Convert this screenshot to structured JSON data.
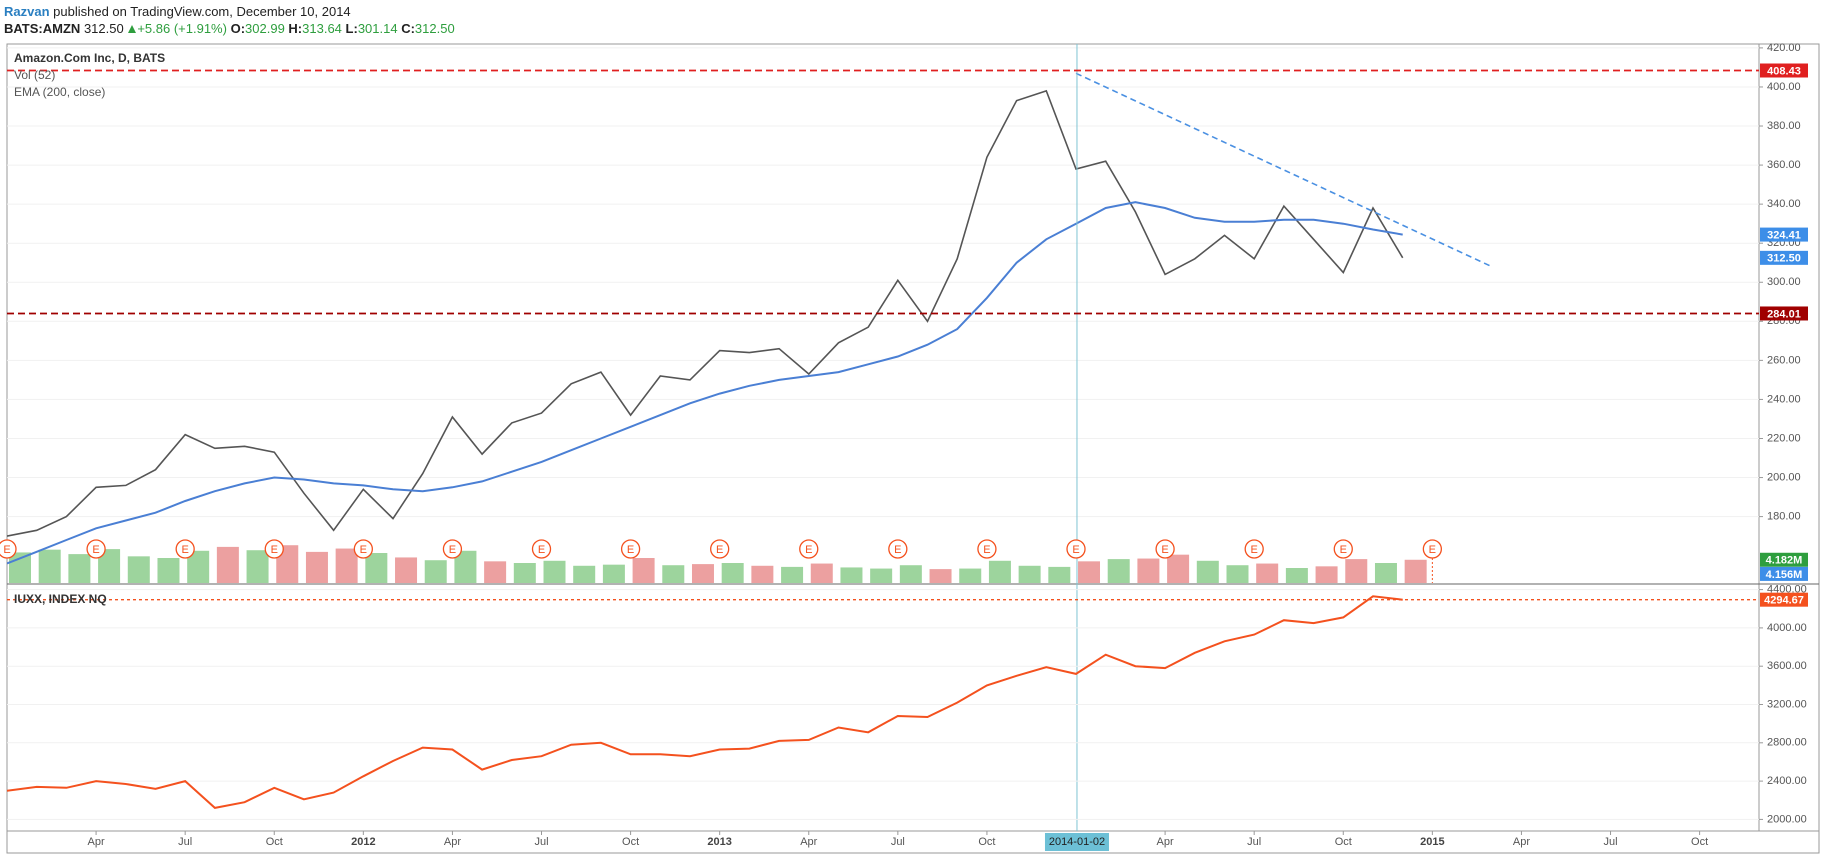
{
  "header": {
    "author": "Razvan",
    "published": "published on TradingView.com, December 10, 2014",
    "symbol": "BATS:AMZN",
    "last": "312.50",
    "change": "+5.86 (+1.91%)",
    "open_label": "O:",
    "open": "302.99",
    "high_label": "H:",
    "high": "313.64",
    "low_label": "L:",
    "low": "301.14",
    "close_label": "C:",
    "close": "312.50"
  },
  "chart_data": [
    {
      "type": "line",
      "x": [
        "2011-01",
        "2011-02",
        "2011-03",
        "2011-04",
        "2011-05",
        "2011-06",
        "2011-07",
        "2011-08",
        "2011-09",
        "2011-10",
        "2011-11",
        "2011-12",
        "2012-01",
        "2012-02",
        "2012-03",
        "2012-04",
        "2012-05",
        "2012-06",
        "2012-07",
        "2012-08",
        "2012-09",
        "2012-10",
        "2012-11",
        "2012-12",
        "2013-01",
        "2013-02",
        "2013-03",
        "2013-04",
        "2013-05",
        "2013-06",
        "2013-07",
        "2013-08",
        "2013-09",
        "2013-10",
        "2013-11",
        "2013-12",
        "2014-01",
        "2014-02",
        "2014-03",
        "2014-04",
        "2014-05",
        "2014-06",
        "2014-07",
        "2014-08",
        "2014-09",
        "2014-10",
        "2014-11",
        "2014-12"
      ],
      "series": [
        {
          "name": "Amazon.Com Inc, D, BATS",
          "color": "#555555",
          "values": [
            170,
            173,
            180,
            195,
            196,
            204,
            222,
            215,
            216,
            213,
            192,
            173,
            194,
            179,
            202,
            231,
            212,
            228,
            233,
            248,
            254,
            232,
            252,
            250,
            265,
            264,
            266,
            253,
            269,
            277,
            301,
            280,
            312,
            364,
            393,
            398,
            358,
            362,
            336,
            304,
            312,
            324,
            312,
            339,
            322,
            305,
            338,
            312.5
          ]
        },
        {
          "name": "EMA (200, close)",
          "color": "#4a7fd4",
          "values": [
            156,
            162,
            168,
            174,
            178,
            182,
            188,
            193,
            197,
            200,
            199,
            197,
            196,
            194,
            193,
            195,
            198,
            203,
            208,
            214,
            220,
            226,
            232,
            238,
            243,
            247,
            250,
            252,
            254,
            258,
            262,
            268,
            276,
            292,
            310,
            322,
            330,
            338,
            341,
            338,
            333,
            331,
            331,
            332,
            332,
            330,
            327,
            324.41
          ]
        }
      ],
      "volume": {
        "name": "Vol (52)",
        "values": [
          5500000,
          6000000,
          5200000,
          6100000,
          4800000,
          4500000,
          5800000,
          6500000,
          5900000,
          6800000,
          5600000,
          6200000,
          5400000,
          4600000,
          4100000,
          5800000,
          3900000,
          3600000,
          4000000,
          3100000,
          3300000,
          4500000,
          3200000,
          3400000,
          3600000,
          3100000,
          2900000,
          3500000,
          2800000,
          2600000,
          3200000,
          2500000,
          2600000,
          4000000,
          3100000,
          2900000,
          3900000,
          4300000,
          4400000,
          5100000,
          4000000,
          3200000,
          3500000,
          2700000,
          3000000,
          4300000,
          3600000,
          4182000
        ],
        "up_color": "#5cb85c",
        "down_color": "#e06060",
        "ylim": [
          0,
          18000000
        ],
        "last_labels": [
          {
            "value": 4182000,
            "label": "4.182M",
            "color": "#2e9e3e"
          },
          {
            "value": 4156000,
            "label": "4.156M",
            "color": "#3d8ee8"
          }
        ]
      },
      "xlim": [
        "2011-01",
        "2015-12"
      ],
      "ylim": [
        146,
        422
      ],
      "yticks": [
        {
          "value": 180,
          "label": "180.00"
        },
        {
          "value": 200,
          "label": "200.00"
        },
        {
          "value": 220,
          "label": "220.00"
        },
        {
          "value": 240,
          "label": "240.00"
        },
        {
          "value": 260,
          "label": "260.00"
        },
        {
          "value": 280,
          "label": "280.00"
        },
        {
          "value": 300,
          "label": "300.00"
        },
        {
          "value": 320,
          "label": "320.00"
        },
        {
          "value": 340,
          "label": "340.00"
        },
        {
          "value": 360,
          "label": "360.00"
        },
        {
          "value": 380,
          "label": "380.00"
        },
        {
          "value": 400,
          "label": "400.00"
        },
        {
          "value": 420,
          "label": "420.00"
        }
      ],
      "price_labels": [
        {
          "value": 408.43,
          "label": "408.43",
          "color": "#e02020",
          "line": true
        },
        {
          "value": 284.01,
          "label": "284.01",
          "color": "#a00000",
          "line": true
        },
        {
          "value": 324.41,
          "label": "324.41",
          "color": "#3d8ee8",
          "line": false
        },
        {
          "value": 312.5,
          "label": "312.50",
          "color": "#3d8ee8",
          "line": false
        }
      ],
      "trendline": {
        "x": [
          "2014-01",
          "2015-03"
        ],
        "y": [
          407,
          308
        ],
        "color": "#4a90e2"
      },
      "cursor_date": "2014-01-02",
      "earnings": {
        "label": "E",
        "color": "#f4511e",
        "x": [
          "2011-01",
          "2011-04",
          "2011-07",
          "2011-10",
          "2012-01",
          "2012-04",
          "2012-07",
          "2012-10",
          "2013-01",
          "2013-04",
          "2013-07",
          "2013-10",
          "2014-01",
          "2014-04",
          "2014-07",
          "2014-10",
          "2015-01"
        ]
      }
    },
    {
      "type": "line",
      "x": [
        "2011-01",
        "2011-02",
        "2011-03",
        "2011-04",
        "2011-05",
        "2011-06",
        "2011-07",
        "2011-08",
        "2011-09",
        "2011-10",
        "2011-11",
        "2011-12",
        "2012-01",
        "2012-02",
        "2012-03",
        "2012-04",
        "2012-05",
        "2012-06",
        "2012-07",
        "2012-08",
        "2012-09",
        "2012-10",
        "2012-11",
        "2012-12",
        "2013-01",
        "2013-02",
        "2013-03",
        "2013-04",
        "2013-05",
        "2013-06",
        "2013-07",
        "2013-08",
        "2013-09",
        "2013-10",
        "2013-11",
        "2013-12",
        "2014-01",
        "2014-02",
        "2014-03",
        "2014-04",
        "2014-05",
        "2014-06",
        "2014-07",
        "2014-08",
        "2014-09",
        "2014-10",
        "2014-11",
        "2014-12"
      ],
      "series": [
        {
          "name": "IUXX, INDEX NQ",
          "color": "#f4511e",
          "values": [
            2300,
            2340,
            2330,
            2400,
            2370,
            2320,
            2400,
            2120,
            2180,
            2330,
            2210,
            2280,
            2450,
            2610,
            2750,
            2730,
            2520,
            2620,
            2660,
            2780,
            2800,
            2680,
            2680,
            2660,
            2730,
            2740,
            2820,
            2830,
            2960,
            2910,
            3080,
            3070,
            3220,
            3400,
            3500,
            3590,
            3520,
            3720,
            3600,
            3580,
            3740,
            3860,
            3930,
            4080,
            4050,
            4110,
            4330,
            4294.67
          ]
        }
      ],
      "xlim": [
        "2011-01",
        "2015-12"
      ],
      "ylim": [
        1879,
        4448
      ],
      "yticks": [
        {
          "value": 2000,
          "label": "2000.00"
        },
        {
          "value": 2400,
          "label": "2400.00"
        },
        {
          "value": 2800,
          "label": "2800.00"
        },
        {
          "value": 3200,
          "label": "3200.00"
        },
        {
          "value": 3600,
          "label": "3600.00"
        },
        {
          "value": 4000,
          "label": "4000.00"
        },
        {
          "value": 4400,
          "label": "4400.00"
        }
      ],
      "price_labels": [
        {
          "value": 4294.67,
          "label": "4294.67",
          "color": "#f4511e",
          "line": true
        }
      ],
      "xticks": [
        {
          "value": "2011-04",
          "label": "Apr"
        },
        {
          "value": "2011-07",
          "label": "Jul"
        },
        {
          "value": "2011-10",
          "label": "Oct"
        },
        {
          "value": "2012-01",
          "label": "2012"
        },
        {
          "value": "2012-04",
          "label": "Apr"
        },
        {
          "value": "2012-07",
          "label": "Jul"
        },
        {
          "value": "2012-10",
          "label": "Oct"
        },
        {
          "value": "2013-01",
          "label": "2013"
        },
        {
          "value": "2013-04",
          "label": "Apr"
        },
        {
          "value": "2013-07",
          "label": "Jul"
        },
        {
          "value": "2013-10",
          "label": "Oct"
        },
        {
          "value": "2014-04",
          "label": "Apr"
        },
        {
          "value": "2014-07",
          "label": "Jul"
        },
        {
          "value": "2014-10",
          "label": "Oct"
        },
        {
          "value": "2015-01",
          "label": "2015"
        },
        {
          "value": "2015-04",
          "label": "Apr"
        },
        {
          "value": "2015-07",
          "label": "Jul"
        },
        {
          "value": "2015-10",
          "label": "Oct"
        }
      ]
    }
  ]
}
